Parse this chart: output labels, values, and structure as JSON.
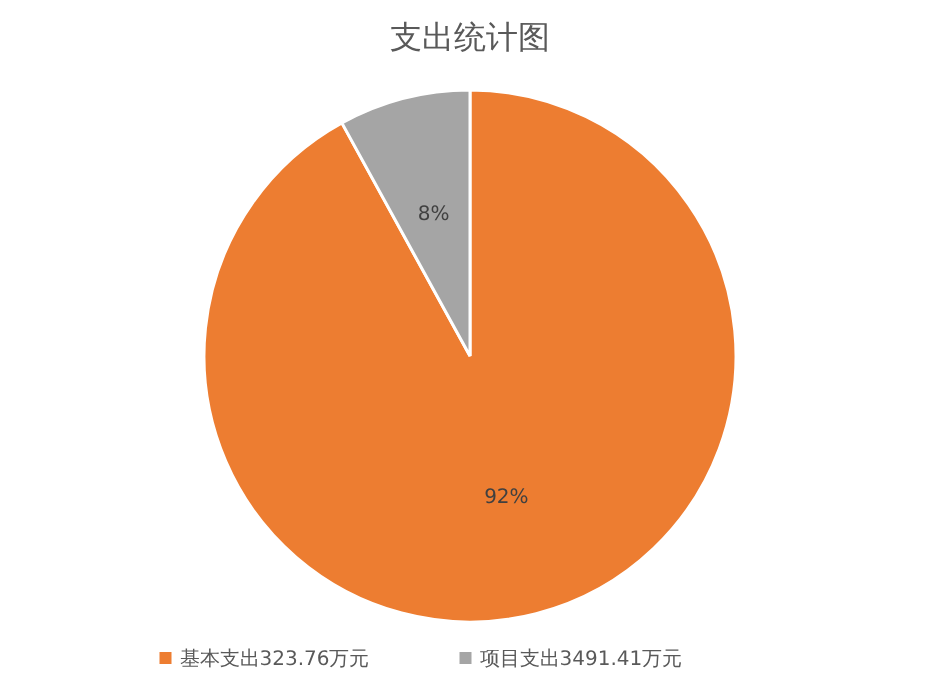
{
  "chart_data": {
    "type": "pie",
    "title": "支出统计图",
    "categories": [
      "基本支出323.76万元",
      "项目支出3491.41万元"
    ],
    "values": [
      92,
      8
    ],
    "colors": [
      "#ed7d31",
      "#a5a5a5"
    ],
    "value_labels": [
      "92%",
      "8%"
    ],
    "legend": "bottom"
  }
}
